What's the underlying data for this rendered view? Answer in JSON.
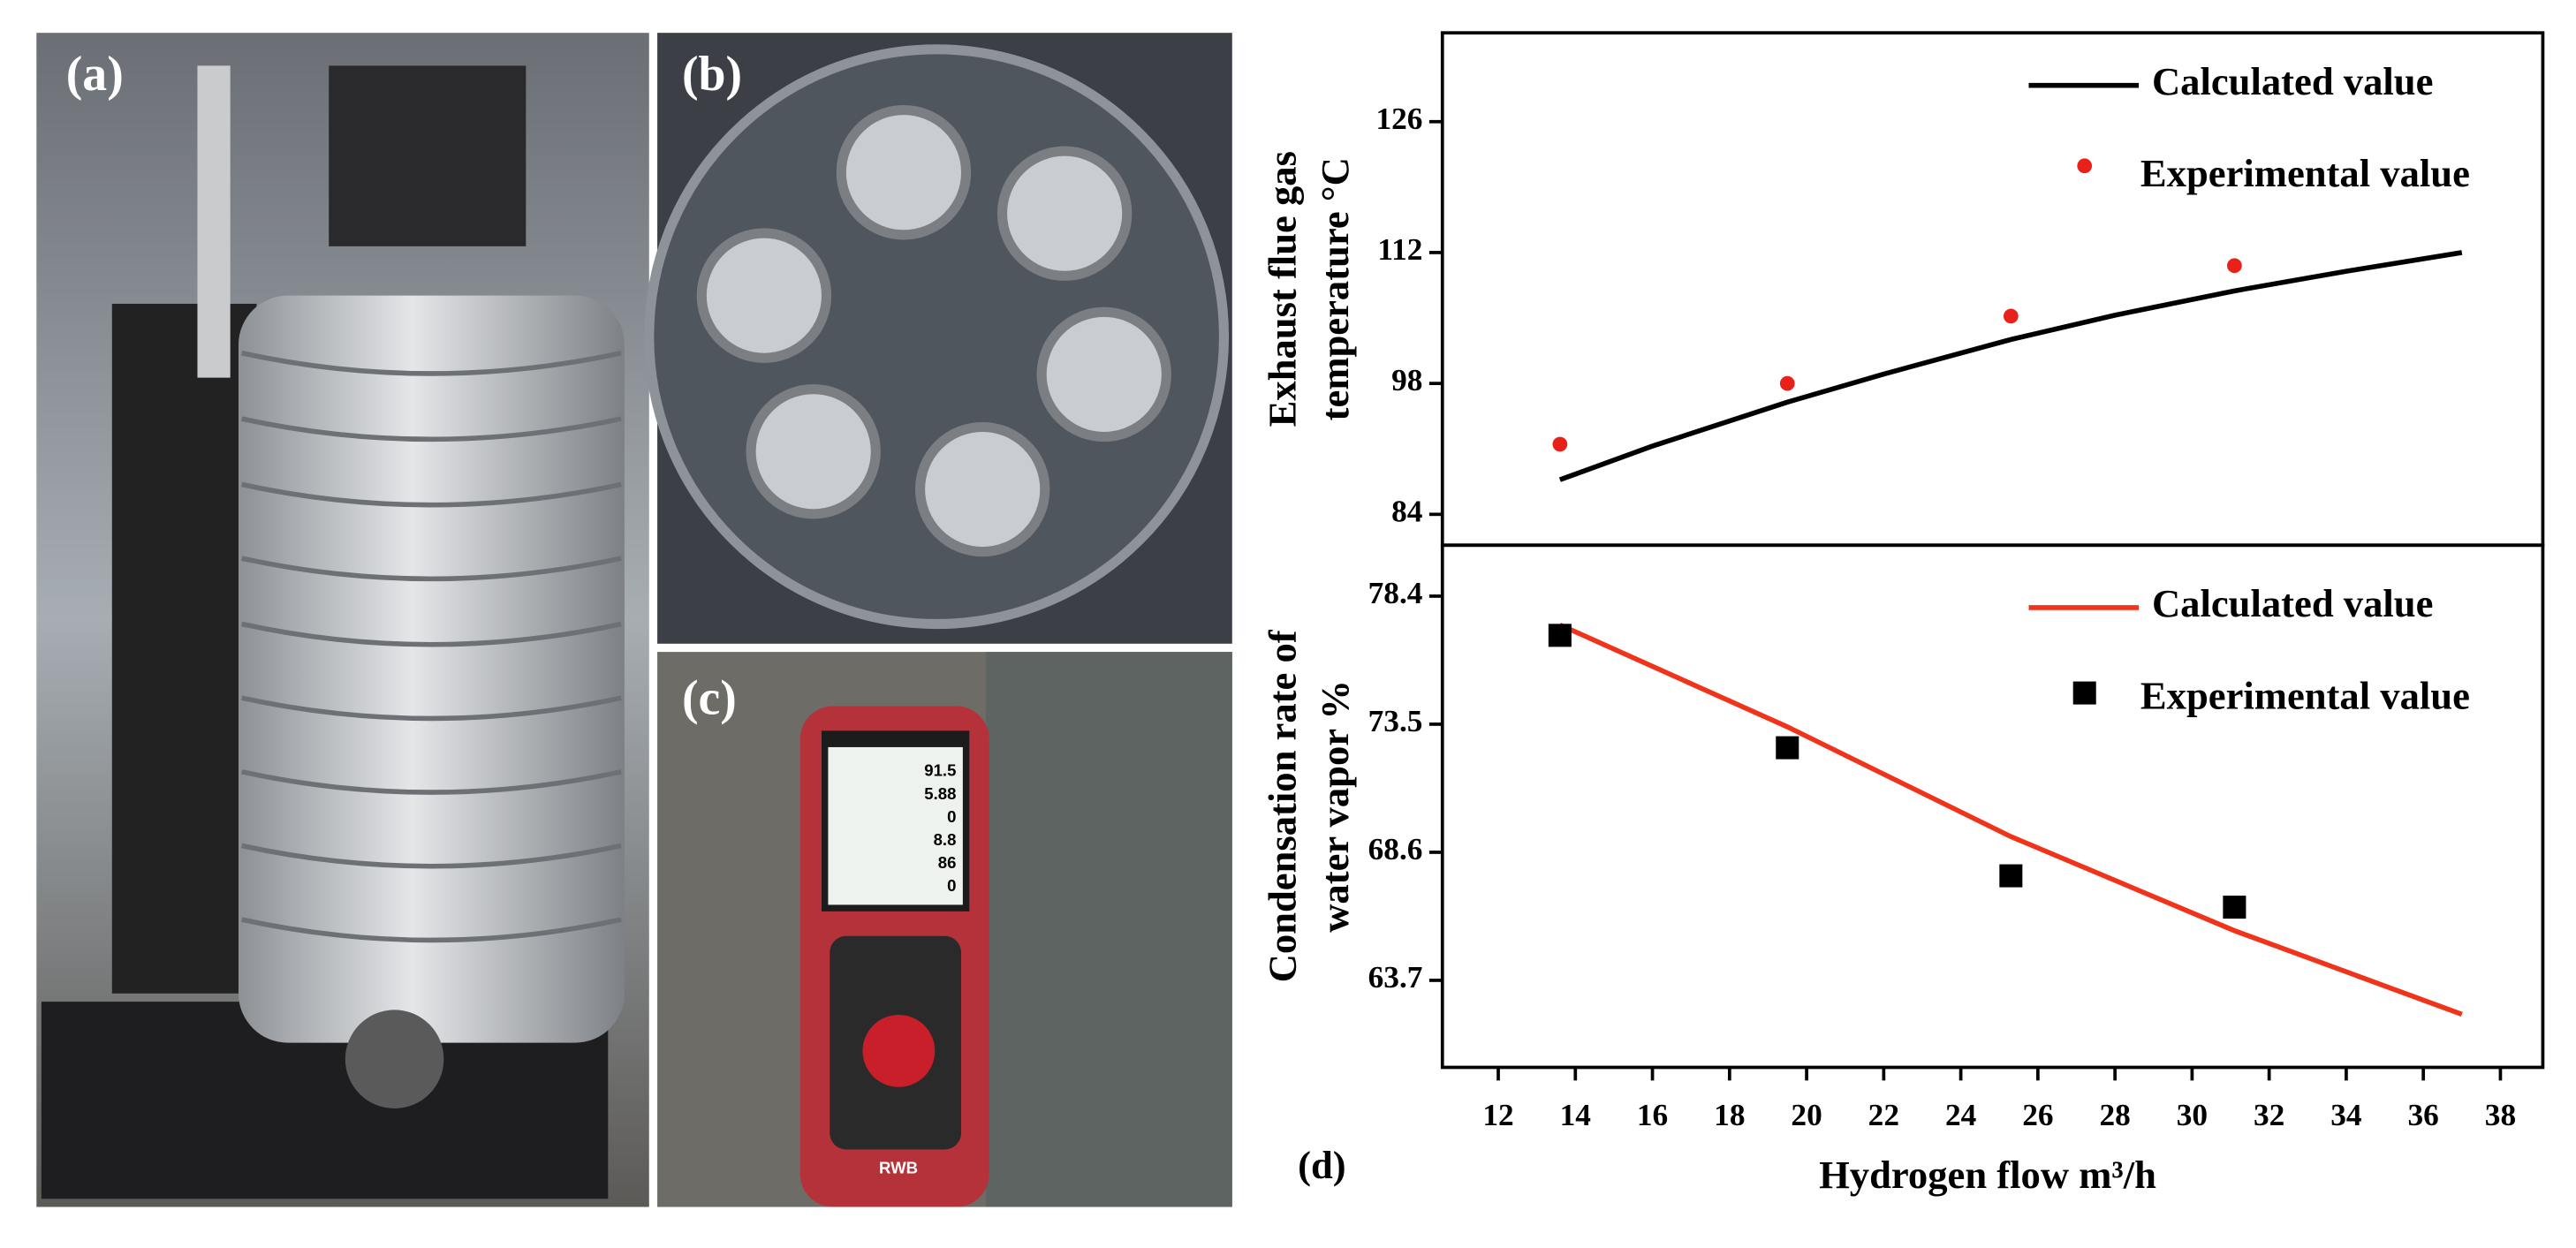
{
  "panels": {
    "a": "(a)",
    "b": "(b)",
    "c": "(c)",
    "d": "(d)",
    "screen": [
      "91.5",
      "5.88",
      "0",
      "8.8",
      "86",
      "0"
    ],
    "brand": "RWB"
  },
  "chart_data": [
    {
      "type": "line",
      "ylabel": [
        "Exhaust flue gas",
        "temperature °C"
      ],
      "xlim": [
        10.55,
        39.1
      ],
      "ylim": [
        80.7,
        135.5
      ],
      "yticks": [
        84,
        98,
        112,
        126
      ],
      "series": [
        {
          "name": "Calculated value",
          "color": "#000000",
          "mode": "line",
          "x": [
            13.6,
            16,
            19.5,
            22,
            25.3,
            28,
            31.1,
            34,
            37
          ],
          "values": [
            87.7,
            91.3,
            96.0,
            99.0,
            102.7,
            105.3,
            107.9,
            110.0,
            112.0
          ]
        },
        {
          "name": "Experimental value",
          "color": "#e8211a",
          "mode": "markers",
          "marker": "circle",
          "x": [
            13.6,
            19.5,
            25.3,
            31.1
          ],
          "values": [
            91.5,
            98.0,
            105.2,
            110.6
          ]
        }
      ]
    },
    {
      "type": "line",
      "ylabel": [
        "Condensation rate of",
        "water vapor %"
      ],
      "xlabel": "Hydrogen flow m³/h",
      "xlim": [
        10.55,
        39.1
      ],
      "ylim": [
        60.37,
        80.35
      ],
      "yticks": [
        63.7,
        68.6,
        73.5,
        78.4
      ],
      "xticks": [
        12,
        14,
        16,
        18,
        20,
        22,
        24,
        26,
        28,
        30,
        32,
        34,
        36,
        38
      ],
      "series": [
        {
          "name": "Calculated value",
          "color": "#f0341c",
          "mode": "line",
          "x": [
            13.6,
            19.5,
            25.3,
            31.1,
            37
          ],
          "values": [
            77.3,
            73.4,
            69.2,
            65.6,
            62.4
          ]
        },
        {
          "name": "Experimental value",
          "color": "#000000",
          "mode": "markers",
          "marker": "square",
          "x": [
            13.6,
            19.5,
            25.3,
            31.1
          ],
          "values": [
            76.9,
            72.6,
            67.7,
            66.5
          ]
        }
      ]
    }
  ]
}
